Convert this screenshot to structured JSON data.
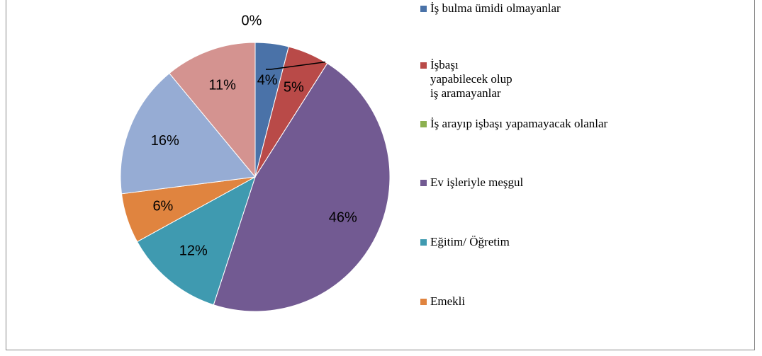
{
  "chart_data": {
    "type": "pie",
    "categories": [
      "İş bulma ümidi olmayanlar",
      "İşbaşı\nyapabilecek olup\niş aramayanlar",
      "İş arayıp işbaşı yapamayacak olanlar",
      "Ev işleriyle meşgul",
      "Eğitim/ Öğretim",
      "Emekli",
      null,
      null
    ],
    "values": [
      4,
      5,
      0,
      46,
      12,
      6,
      16,
      11
    ],
    "value_labels": [
      "4%",
      "5%",
      "0%",
      "46%",
      "12%",
      "6%",
      "16%",
      "11%"
    ],
    "colors": [
      "#4a72a8",
      "#b94a48",
      "#8cb050",
      "#725a92",
      "#3f9ab0",
      "#e0843f",
      "#96acd4",
      "#d49390"
    ],
    "legend": "right"
  }
}
